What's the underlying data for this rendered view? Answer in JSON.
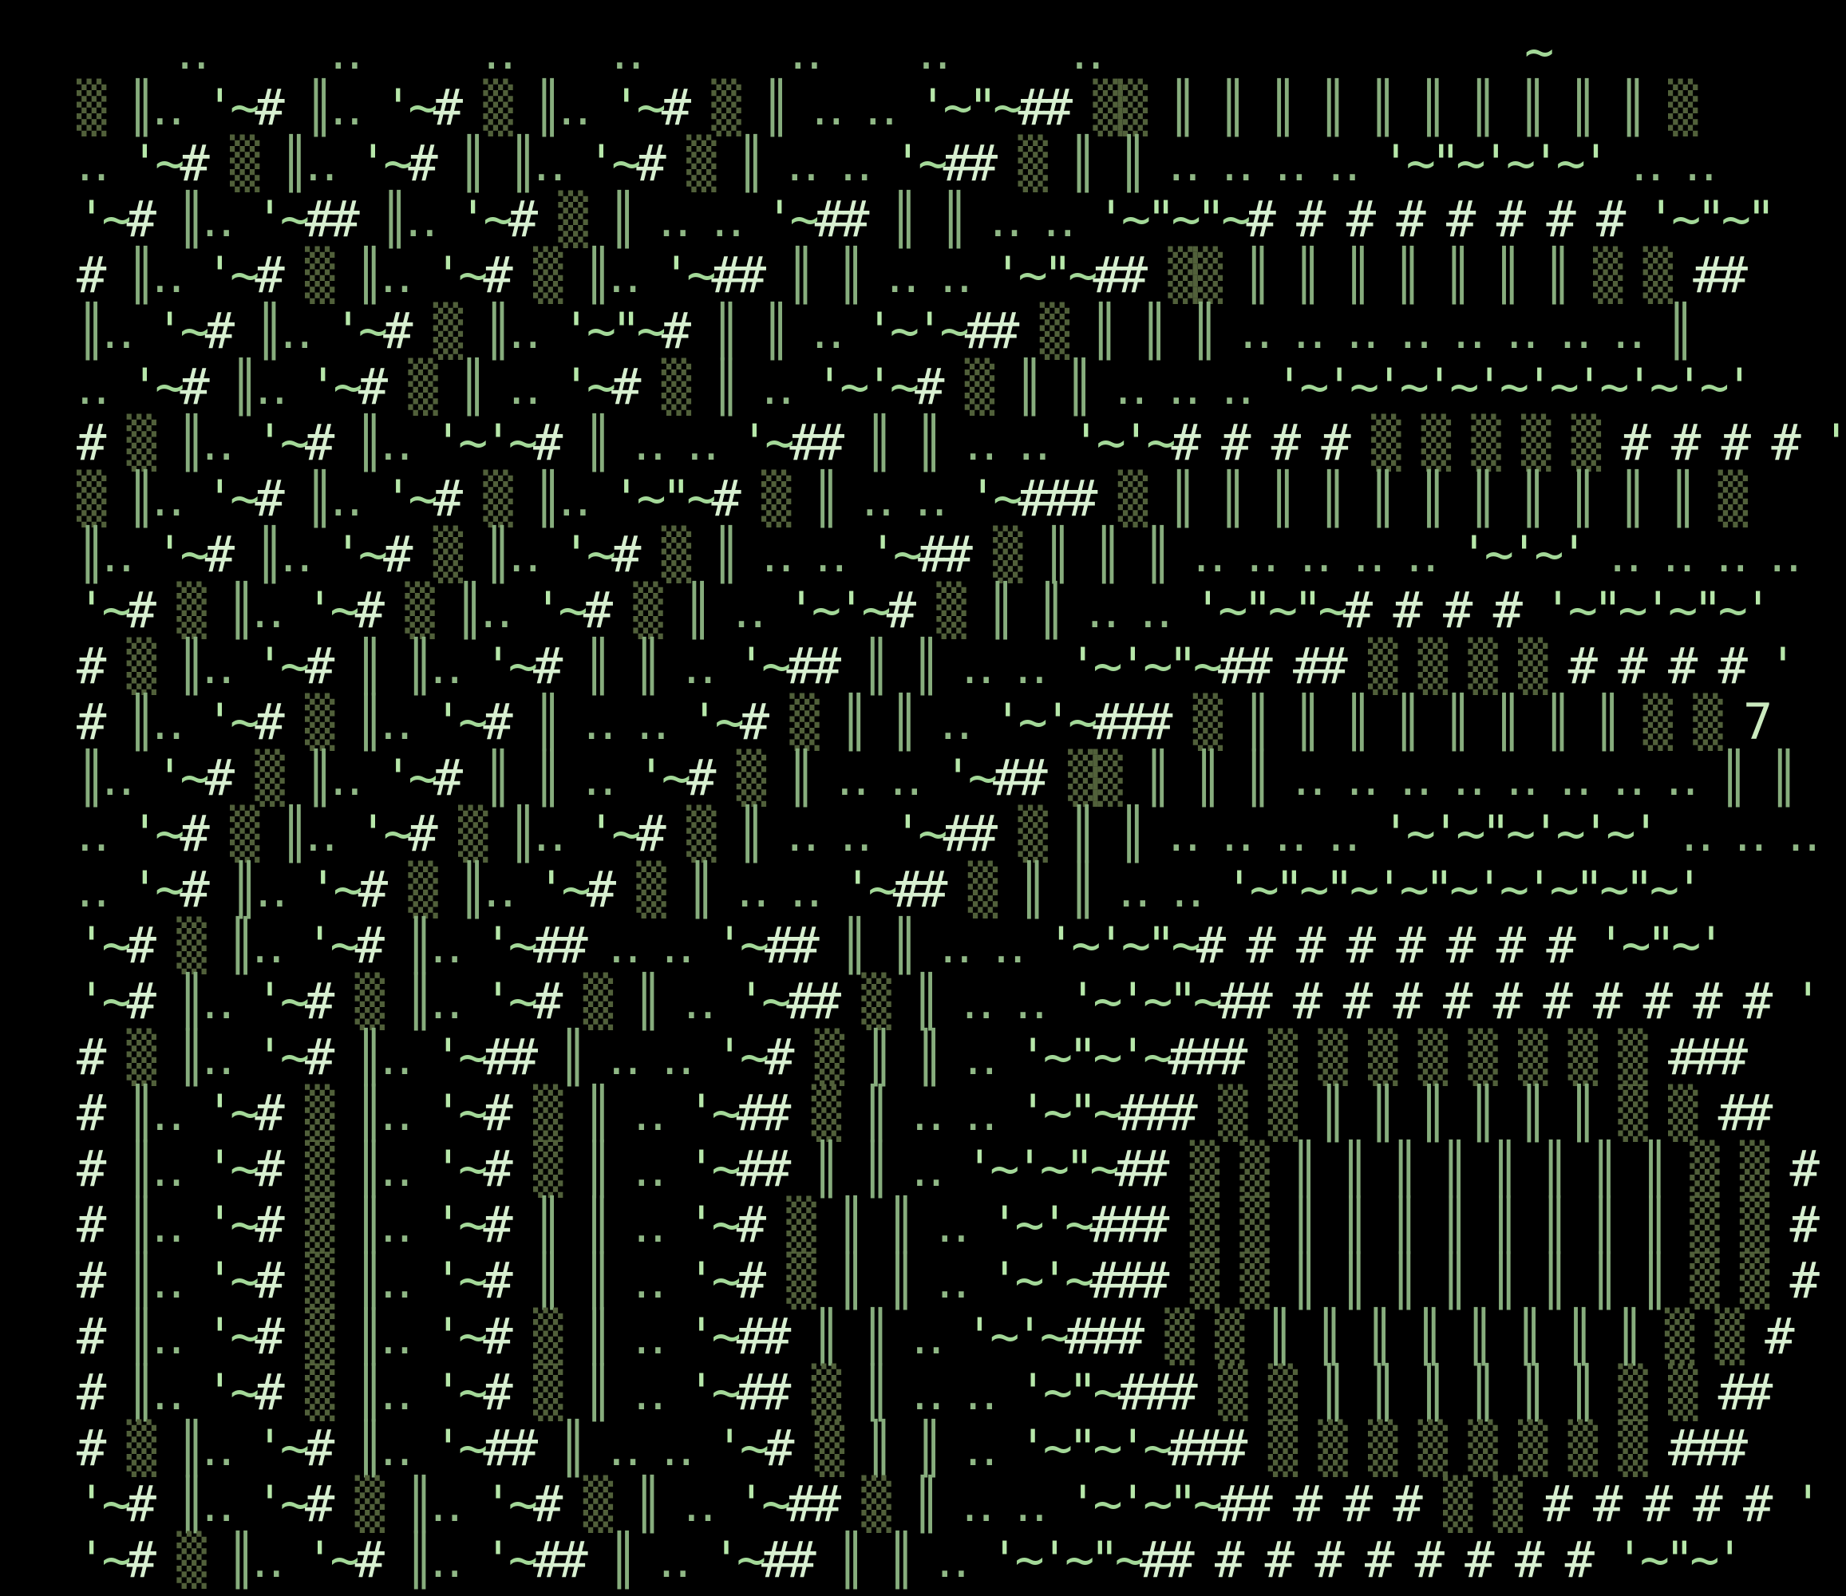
{
  "background": "#000000",
  "art": {
    "description": "green ascii-art glyph matrix on black terminal screen",
    "palette": {
      " ": "#000000",
      "▒": "#51603a",
      "║": "#87ad7d",
      "‥": "#90b886",
      "'": "#b7e8aa",
      "\"": "#b7e8aa",
      "~": "#a3d898",
      "#": "#d7efd0",
      "7": "#cbeabf"
    },
    "rows": [
      "    ‥     ‥     ‥    ‥      ‥    ‥     ‥                 ~",
      "▒ ║‥ '~# ║‥ '~# ▒ ║‥ '~# ▒ ║ ‥ ‥ '~\"~## ▒▒ ║ ║ ║ ║ ║ ║ ║ ║ ║ ║ ▒",
      "‥ '~# ▒ ║‥ '~# ║ ║‥ '~# ▒ ║ ‥ ‥ '~## ▒ ║ ║ ‥ ‥ ‥ ‥ '~\"~'~'~' ‥ ‥",
      "'~# ║‥ '~## ║‥ '~# ▒ ║ ‥ ‥ '~## ║ ║ ‥ ‥ '~\"~\"~# # # # # # # # '~\"~\"",
      "# ║‥ '~# ▒ ║‥ '~# ▒ ║‥ '~## ║ ║ ‥ ‥ '~\"~## ▒▒ ║ ║ ║ ║ ║ ║ ║ ▒ ▒ ##",
      "║‥ '~# ║‥ '~# ▒ ║‥ '~\"~# ║ ║ ‥ '~'~## ▒ ║ ║ ║ ‥ ‥ ‥ ‥ ‥ ‥ ‥ ‥ ║",
      "‥ '~# ║‥ '~# ▒ ║ ‥ '~# ▒ ║ ‥ '~'~# ▒ ║ ║ ‥ ‥ ‥ '~'~'~'~'~'~'~'~'~'",
      "# ▒ ║‥ '~# ║‥ '~'~# ║ ‥ ‥ '~## ║ ║ ‥ ‥ '~'~# # # # ▒ ▒ ▒ ▒ ▒ # # # # '",
      "▒ ║‥ '~# ║‥ '~# ▒ ║‥ '~\"~# ▒ ║ ‥ ‥ '~### ▒ ║ ║ ║ ║ ║ ║ ║ ║ ║ ║ ║ ▒",
      "║‥ '~# ║‥ '~# ▒ ║‥ '~# ▒ ║ ‥ ‥ '~## ▒ ║ ║ ║ ‥ ‥ ‥ ‥ ‥ '~'~' ‥ ‥ ‥ ‥",
      "'~# ▒ ║‥ '~# ▒ ║‥ '~# ▒ ║ ‥ '~'~# ▒ ║ ║ ‥ ‥ '~\"~\"~# # # # '~\"~'~\"~'",
      "# ▒ ║‥ '~# ║ ║‥ '~# ║ ║ ‥ '~## ║ ║ ‥ ‥ '~'~\"~## ## ▒ ▒ ▒ ▒ # # # # '",
      "# ║‥ '~# ▒ ║‥ '~# ║ ‥ ‥ '~# ▒ ║ ║ ‥ '~'~### ▒ ║ ║ ║ ║ ║ ║ ║ ║ ▒ ▒ 7",
      "║‥ '~# ▒ ║‥ '~# ║ ║ ‥ '~# ▒ ║ ‥ ‥ '~## ▒▒ ║ ║ ║ ‥ ‥ ‥ ‥ ‥ ‥ ‥ ‥ ║ ║",
      "‥ '~# ▒ ║‥ '~# ▒ ║‥ '~# ▒ ║ ‥ ‥ '~## ▒ ║ ║ ‥ ‥ ‥ ‥ '~'~\"~'~'~' ‥ ‥ ‥",
      "‥ '~# ║‥ '~# ▒ ║‥ '~# ▒ ║ ‥ ‥ '~## ▒ ║ ║ ‥ ‥ '~\"~\"~'~\"~'~'~\"~\"~'",
      "'~# ▒ ║‥ '~# ║‥ '~## ‥ ‥ '~## ║ ║ ‥ ‥ '~'~\"~# # # # # # # # '~\"~'",
      "'~# ║‥ '~# ▒ ║‥ '~# ▒ ║ ‥ '~## ▒ ║ ‥ ‥ '~'~\"~## # # # # # # # # # # '",
      "# ▒ ║‥ '~# ║‥ '~## ║ ‥ ‥ '~# ▒ ║ ║ ‥ '~\"~'~### ▒ ▒ ▒ ▒ ▒ ▒ ▒ ▒ ###",
      "# ║‥ '~# ▒ ║‥ '~# ▒ ║ ‥ '~## ▒ ║ ‥ ‥ '~\"~### ▒ ▒ ║ ║ ║ ║ ║ ║ ▒ ▒ ##",
      "# ║‥ '~# ▒ ║‥ '~# ▒ ║ ‥ '~## ║ ║ ‥ '~'~\"~## ▒ ▒ ║ ║ ║ ║ ║ ║ ║ ║ ▒ ▒ #",
      "# ║‥ '~# ▒ ║‥ '~# ║ ║ ‥ '~# ▒ ║ ║ ‥ '~'~### ▒ ▒ ║ ║ ║ ║ ║ ║ ║ ║ ▒ ▒ #",
      "# ║‥ '~# ▒ ║‥ '~# ║ ║ ‥ '~# ▒ ║ ║ ‥ '~'~### ▒ ▒ ║ ║ ║ ║ ║ ║ ║ ║ ▒ ▒ #",
      "# ║‥ '~# ▒ ║‥ '~# ▒ ║ ‥ '~## ║ ║ ‥ '~'~### ▒ ▒ ║ ║ ║ ║ ║ ║ ║ ║ ▒ ▒ #",
      "# ║‥ '~# ▒ ║‥ '~# ▒ ║ ‥ '~## ▒ ║ ‥ ‥ '~\"~### ▒ ▒ ║ ║ ║ ║ ║ ║ ▒ ▒ ##",
      "# ▒ ║‥ '~# ║‥ '~## ║ ‥ ‥ '~# ▒ ║ ║ ‥ '~\"~'~### ▒ ▒ ▒ ▒ ▒ ▒ ▒ ▒ ###",
      "'~# ║‥ '~# ▒ ║‥ '~# ▒ ║ ‥ '~## ▒ ║ ‥ ‥ '~'~\"~## # # # ▒ ▒ # # # # # '",
      "'~# ▒ ║‥ '~# ║‥ '~## ║ ‥ '~## ║ ║ ‥ '~'~\"~## # # # # # # # # '~\"~'"
    ]
  }
}
